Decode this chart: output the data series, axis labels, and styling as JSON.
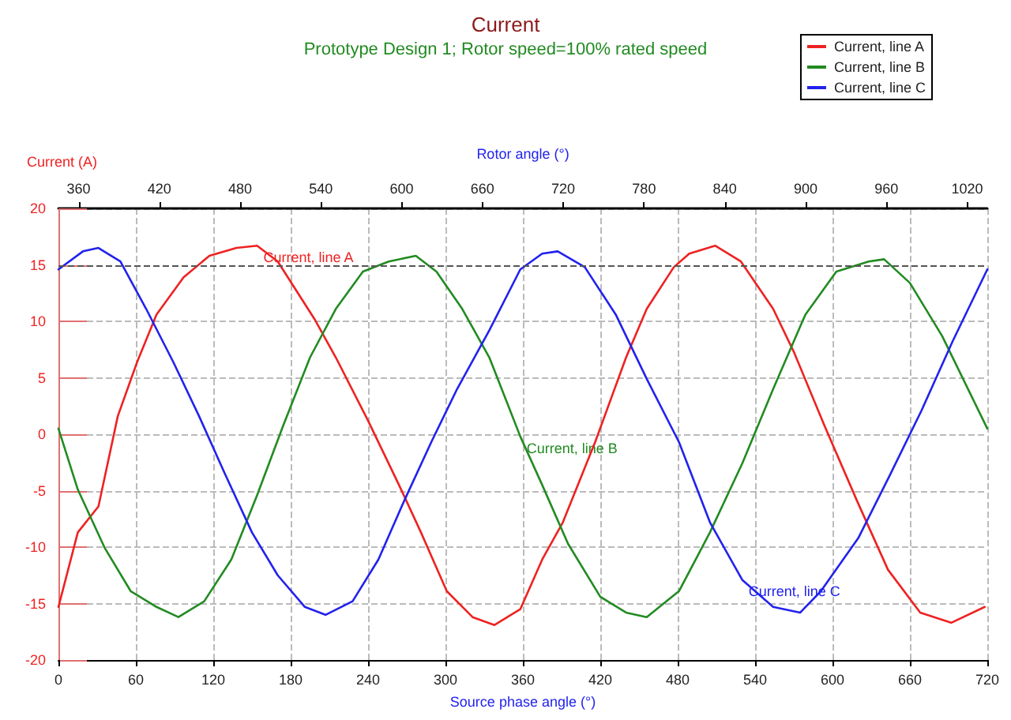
{
  "chart_data": {
    "type": "line",
    "title": "Current",
    "subtitle": "Prototype Design 1; Rotor speed=100% rated speed",
    "xlabel": "Source phase angle (°)",
    "ylabel": "Current (A)",
    "x2label": "Rotor angle (°)",
    "xlim": [
      0,
      720
    ],
    "xticks": [
      0,
      60,
      120,
      180,
      240,
      300,
      360,
      420,
      480,
      540,
      600,
      660,
      720
    ],
    "x2lim": [
      345,
      1035
    ],
    "x2ticks": [
      360,
      420,
      480,
      540,
      600,
      660,
      720,
      780,
      840,
      900,
      960,
      1020
    ],
    "ylim": [
      -20,
      20
    ],
    "yticks": [
      -20,
      -15,
      -10,
      -5,
      0,
      5,
      10,
      15,
      20
    ],
    "grid": true,
    "legend": "top right",
    "marker": "none",
    "line_style": "solid",
    "ref_lines": [
      {
        "axis": "y",
        "value": 15,
        "color": "#555555",
        "line_style": "dashed"
      }
    ],
    "annotations": [
      {
        "text": "Current, line A",
        "x": 154,
        "y": 16.7
      },
      {
        "text": "Current, line B",
        "x": 358,
        "y": -0.2
      },
      {
        "text": "Current, line C",
        "x": 530,
        "y": -12.9
      }
    ],
    "series": [
      {
        "name": "Current, line A",
        "color": "#ee2222",
        "x": [
          0,
          15,
          31,
          46,
          61,
          76,
          97,
          117,
          138,
          154,
          170,
          199,
          215,
          240,
          264,
          281,
          301,
          321,
          338,
          358,
          375,
          391,
          416,
          440,
          456,
          477,
          489,
          509,
          529,
          554,
          570,
          594,
          619,
          643,
          668,
          692,
          718
        ],
        "values": [
          -15.3,
          -8.7,
          -6.4,
          1.6,
          6.4,
          10.6,
          13.9,
          15.8,
          16.5,
          16.7,
          15.3,
          10.1,
          6.8,
          1.2,
          -4.5,
          -8.7,
          -13.9,
          -16.2,
          -16.9,
          -15.5,
          -11.1,
          -7.8,
          -0.7,
          6.8,
          11.1,
          14.8,
          16.0,
          16.7,
          15.3,
          11.1,
          7.3,
          0.7,
          -5.9,
          -12.0,
          -15.8,
          -16.7,
          -15.3
        ]
      },
      {
        "name": "Current, line B",
        "color": "#228b22",
        "x": [
          0,
          15,
          36,
          56,
          76,
          93,
          113,
          134,
          154,
          174,
          195,
          215,
          236,
          256,
          277,
          293,
          313,
          334,
          358,
          375,
          395,
          420,
          440,
          456,
          481,
          505,
          530,
          554,
          579,
          603,
          628,
          640,
          660,
          685,
          720
        ],
        "values": [
          0.5,
          -4.9,
          -10.1,
          -13.9,
          -15.3,
          -16.2,
          -14.8,
          -11.1,
          -5.4,
          0.7,
          6.8,
          11.1,
          14.4,
          15.3,
          15.8,
          14.4,
          11.1,
          6.8,
          -0.2,
          -4.5,
          -9.7,
          -14.4,
          -15.8,
          -16.2,
          -13.9,
          -8.7,
          -2.6,
          4.0,
          10.6,
          14.4,
          15.3,
          15.5,
          13.4,
          8.7,
          0.5
        ]
      },
      {
        "name": "Current, line C",
        "color": "#2222ee",
        "x": [
          0,
          19,
          31,
          48,
          68,
          89,
          109,
          129,
          150,
          170,
          191,
          207,
          228,
          248,
          268,
          289,
          309,
          334,
          358,
          375,
          387,
          408,
          432,
          456,
          481,
          505,
          530,
          554,
          575,
          591,
          620,
          645,
          669,
          693,
          720
        ],
        "values": [
          14.6,
          16.2,
          16.5,
          15.3,
          11.1,
          6.4,
          1.6,
          -3.5,
          -8.7,
          -12.5,
          -15.3,
          -16.0,
          -14.8,
          -11.1,
          -5.9,
          -0.7,
          4.0,
          9.2,
          14.6,
          16.0,
          16.2,
          14.8,
          10.6,
          4.9,
          -0.7,
          -7.8,
          -12.9,
          -15.3,
          -15.8,
          -13.9,
          -9.2,
          -3.5,
          2.1,
          8.2,
          14.6
        ]
      }
    ]
  }
}
